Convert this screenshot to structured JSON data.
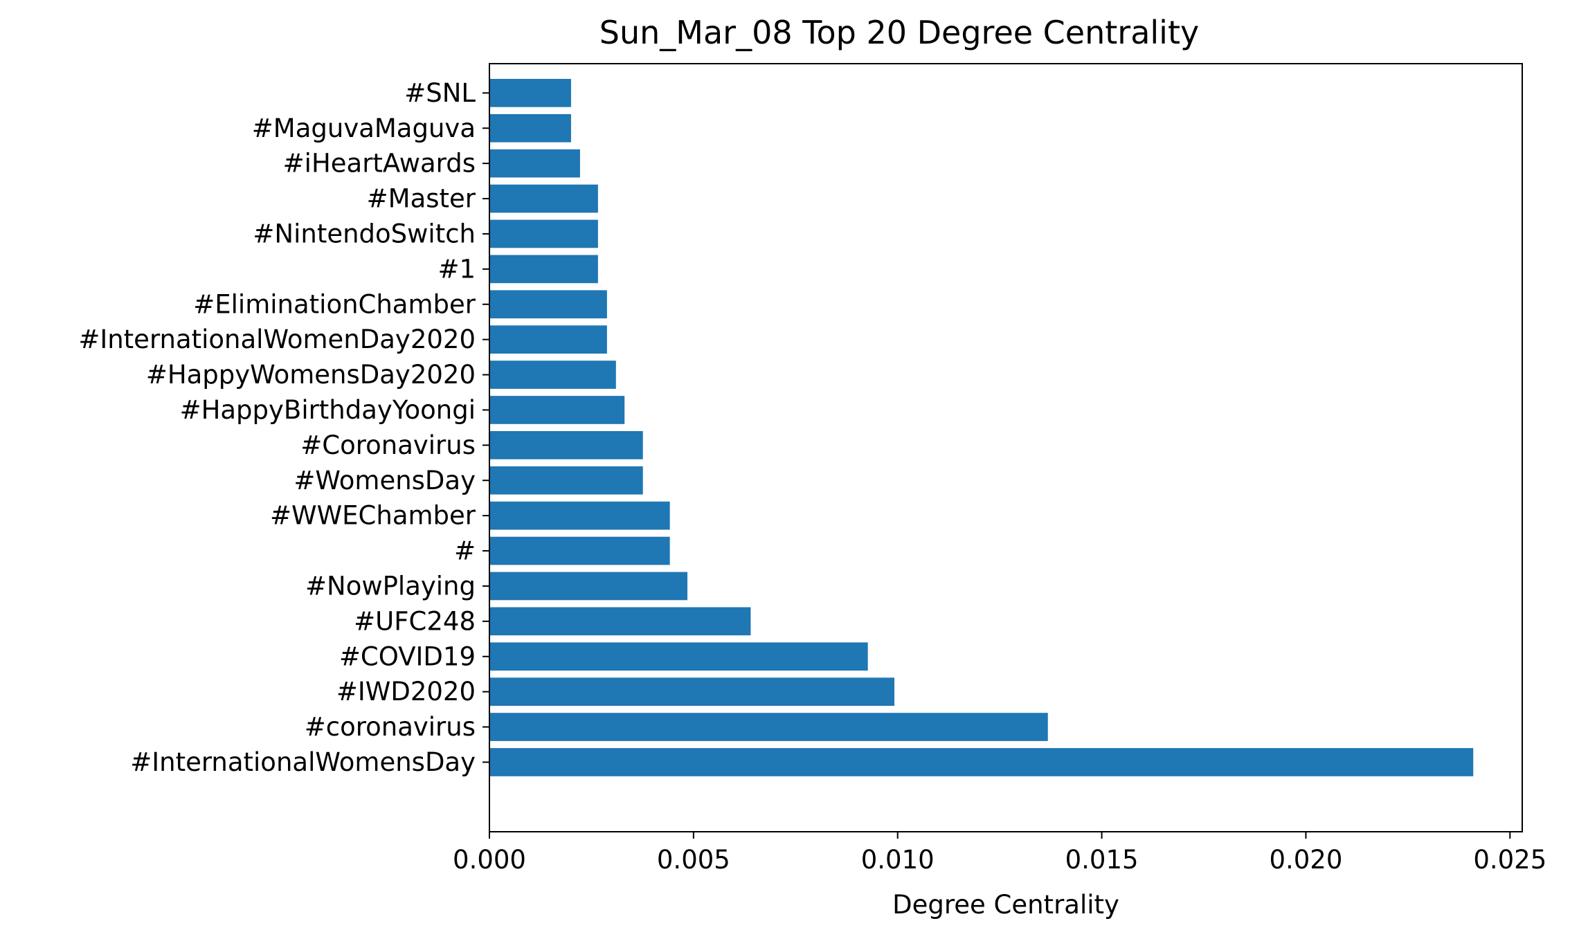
{
  "chart_data": {
    "type": "bar",
    "orientation": "horizontal",
    "title": "Sun_Mar_08 Top 20 Degree Centrality",
    "xlabel": "Degree Centrality",
    "ylabel": "",
    "xlim": [
      0,
      0.0253
    ],
    "xticks": [
      0.0,
      0.005,
      0.01,
      0.015,
      0.02,
      0.025
    ],
    "xtick_labels": [
      "0.000",
      "0.005",
      "0.010",
      "0.015",
      "0.020",
      "0.025"
    ],
    "grid": false,
    "legend": "none",
    "bar_color": "#1f77b4",
    "categories": [
      "#InternationalWomensDay",
      "#coronavirus",
      "#IWD2020",
      "#COVID19",
      "#UFC248",
      "#NowPlaying",
      "#",
      "#WWEChamber",
      "#WomensDay",
      "#Coronavirus",
      "#HappyBirthdayYoongi",
      "#HappyWomensDay2020",
      "#InternationalWomenDay2020",
      "#EliminationChamber",
      "#1",
      "#NintendoSwitch",
      "#Master",
      "#iHeartAwards",
      "#MaguvaMaguva",
      "#SNL"
    ],
    "values": [
      0.0241,
      0.01368,
      0.00992,
      0.00927,
      0.0064,
      0.00485,
      0.00442,
      0.00442,
      0.00376,
      0.00376,
      0.00331,
      0.0031,
      0.00288,
      0.00288,
      0.00266,
      0.00266,
      0.00266,
      0.00222,
      0.002,
      0.002
    ]
  }
}
